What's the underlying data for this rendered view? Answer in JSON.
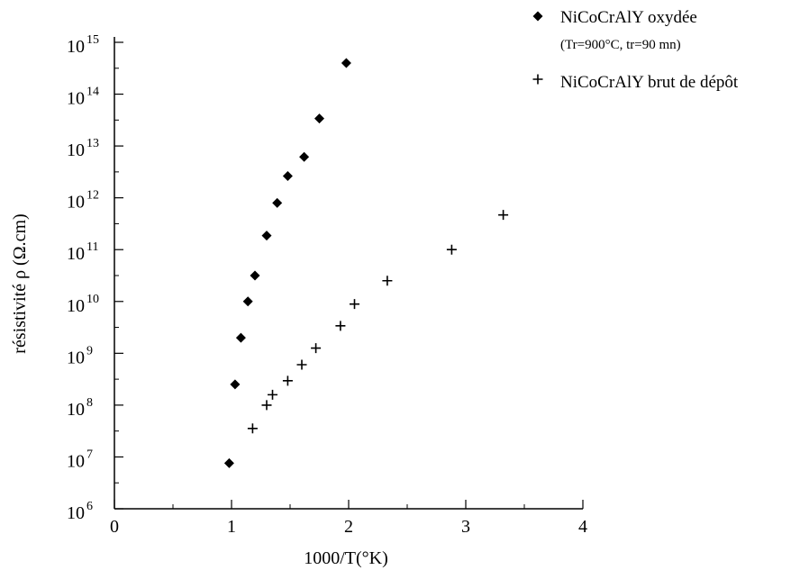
{
  "chart_data": {
    "type": "scatter",
    "xlabel": "1000/T(°K)",
    "ylabel": "résistivité ρ (Ω.cm)",
    "xlim": [
      0,
      4
    ],
    "ylim_exponent": [
      6,
      15
    ],
    "y_scale": "log",
    "x_ticks": [
      "0",
      "1",
      "2",
      "3",
      "4"
    ],
    "y_ticks": [
      {
        "base": "10",
        "exp": "15"
      },
      {
        "base": "10",
        "exp": "14"
      },
      {
        "base": "10",
        "exp": "13"
      },
      {
        "base": "10",
        "exp": "12"
      },
      {
        "base": "10",
        "exp": "11"
      },
      {
        "base": "10",
        "exp": "10"
      },
      {
        "base": "10",
        "exp": "9"
      },
      {
        "base": "10",
        "exp": "8"
      },
      {
        "base": "10",
        "exp": "7"
      },
      {
        "base": "10",
        "exp": "6"
      }
    ],
    "grid": false,
    "legend_position": "top-right",
    "series": [
      {
        "name": "NiCoCrAlY oxydée",
        "subtitle": "(Tr=900°C, tr=90 mn)",
        "marker": "diamond",
        "x": [
          0.98,
          1.03,
          1.08,
          1.14,
          1.2,
          1.3,
          1.39,
          1.48,
          1.62,
          1.75,
          1.98
        ],
        "log10y": [
          6.88,
          8.4,
          9.3,
          10.0,
          10.5,
          11.27,
          11.9,
          12.42,
          12.79,
          13.53,
          14.6
        ]
      },
      {
        "name": "NiCoCrAlY brut de dépôt",
        "marker": "plus",
        "x": [
          1.18,
          1.3,
          1.35,
          1.48,
          1.6,
          1.72,
          1.93,
          2.05,
          2.33,
          2.88,
          3.32
        ],
        "log10y": [
          7.55,
          8.0,
          8.2,
          8.47,
          8.78,
          9.1,
          9.53,
          9.95,
          10.4,
          11.0,
          11.67
        ]
      }
    ]
  }
}
